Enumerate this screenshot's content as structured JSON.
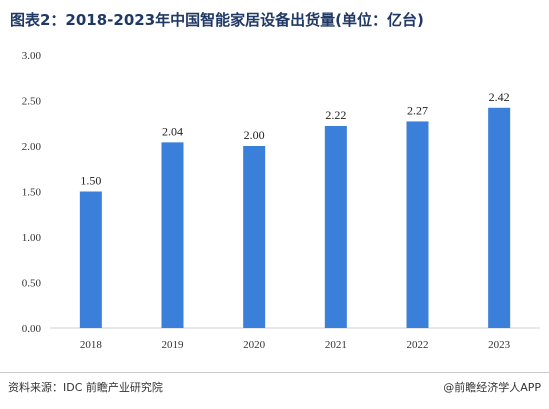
{
  "title": "图表2：2018-2023年中国智能家居设备出货量(单位：亿台)",
  "source": "资料来源：IDC 前瞻产业研究院",
  "brand": "@前瞻经济学人APP",
  "colors": {
    "bar": "#3a7fd9",
    "axis": "#d0d0d0",
    "title": "#1f3864"
  },
  "chart_data": {
    "type": "bar",
    "categories": [
      "2018",
      "2019",
      "2020",
      "2021",
      "2022",
      "2023"
    ],
    "values": [
      1.5,
      2.04,
      2.0,
      2.22,
      2.27,
      2.42
    ],
    "value_labels": [
      "1.50",
      "2.04",
      "2.00",
      "2.22",
      "2.27",
      "2.42"
    ],
    "ylim": [
      0,
      3.0
    ],
    "yticks": [
      0,
      0.5,
      1.0,
      1.5,
      2.0,
      2.5,
      3.0
    ],
    "ytick_labels": [
      "0.00",
      "0.50",
      "1.00",
      "1.50",
      "2.00",
      "2.50",
      "3.00"
    ],
    "grid": false,
    "legend": "none"
  }
}
